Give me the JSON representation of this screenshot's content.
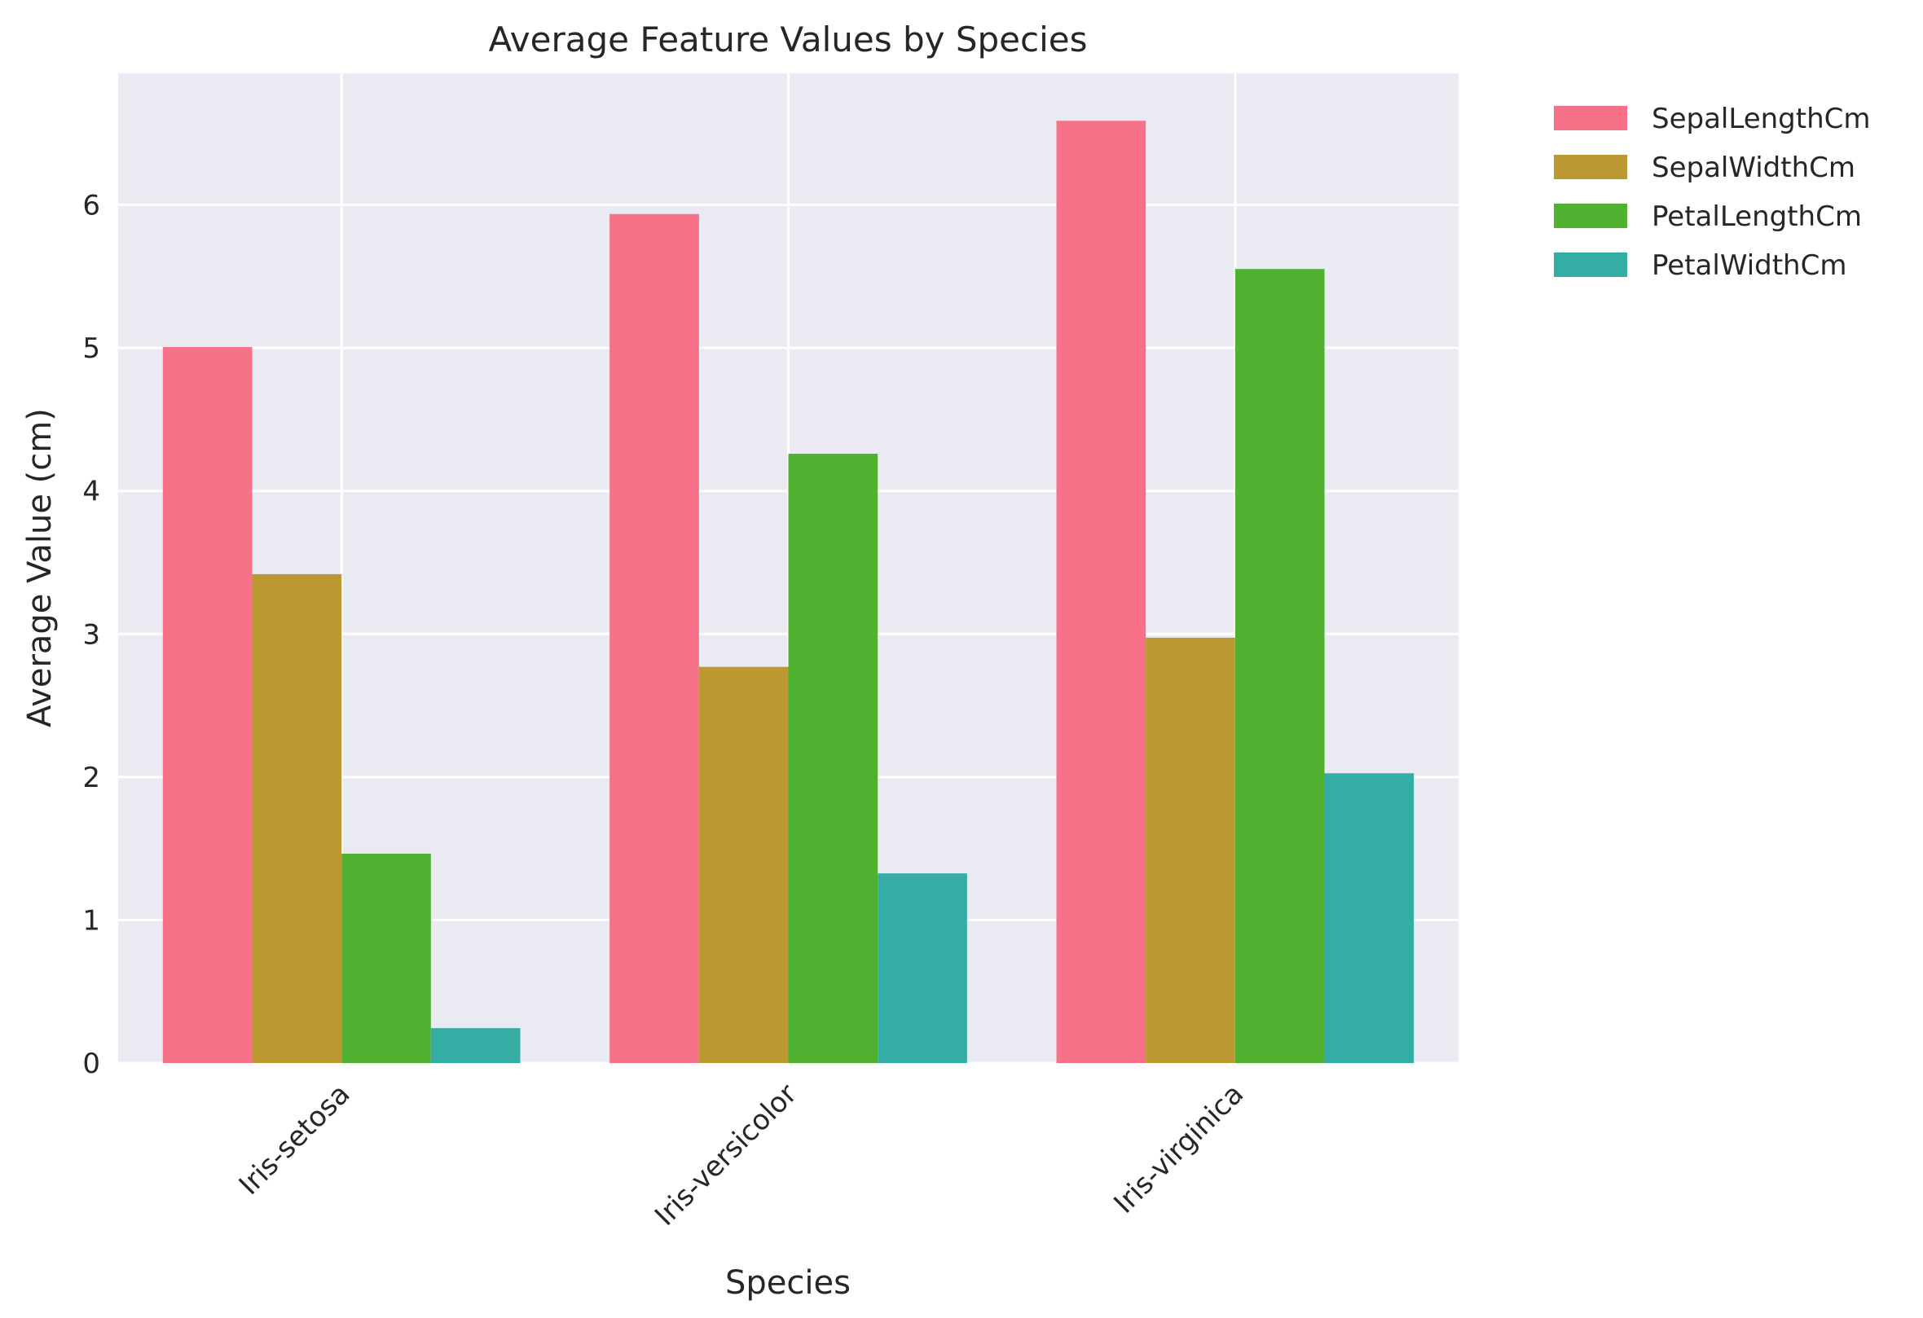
{
  "chart_data": {
    "type": "bar",
    "title": "Average Feature Values by Species",
    "xlabel": "Species",
    "ylabel": "Average Value (cm)",
    "categories": [
      "Iris-setosa",
      "Iris-versicolor",
      "Iris-virginica"
    ],
    "ylim": [
      0,
      6.92
    ],
    "yticks": [
      0,
      1,
      2,
      3,
      4,
      5,
      6
    ],
    "grid": true,
    "legend_placement": "outside-top-right",
    "series": [
      {
        "name": "SepalLengthCm",
        "color": "#f77189",
        "values": [
          5.006,
          5.936,
          6.588
        ]
      },
      {
        "name": "SepalWidthCm",
        "color": "#bb9832",
        "values": [
          3.418,
          2.77,
          2.974
        ]
      },
      {
        "name": "PetalLengthCm",
        "color": "#50b131",
        "values": [
          1.464,
          4.26,
          5.552
        ]
      },
      {
        "name": "PetalWidthCm",
        "color": "#36ada4",
        "values": [
          0.244,
          1.326,
          2.026
        ]
      }
    ]
  }
}
